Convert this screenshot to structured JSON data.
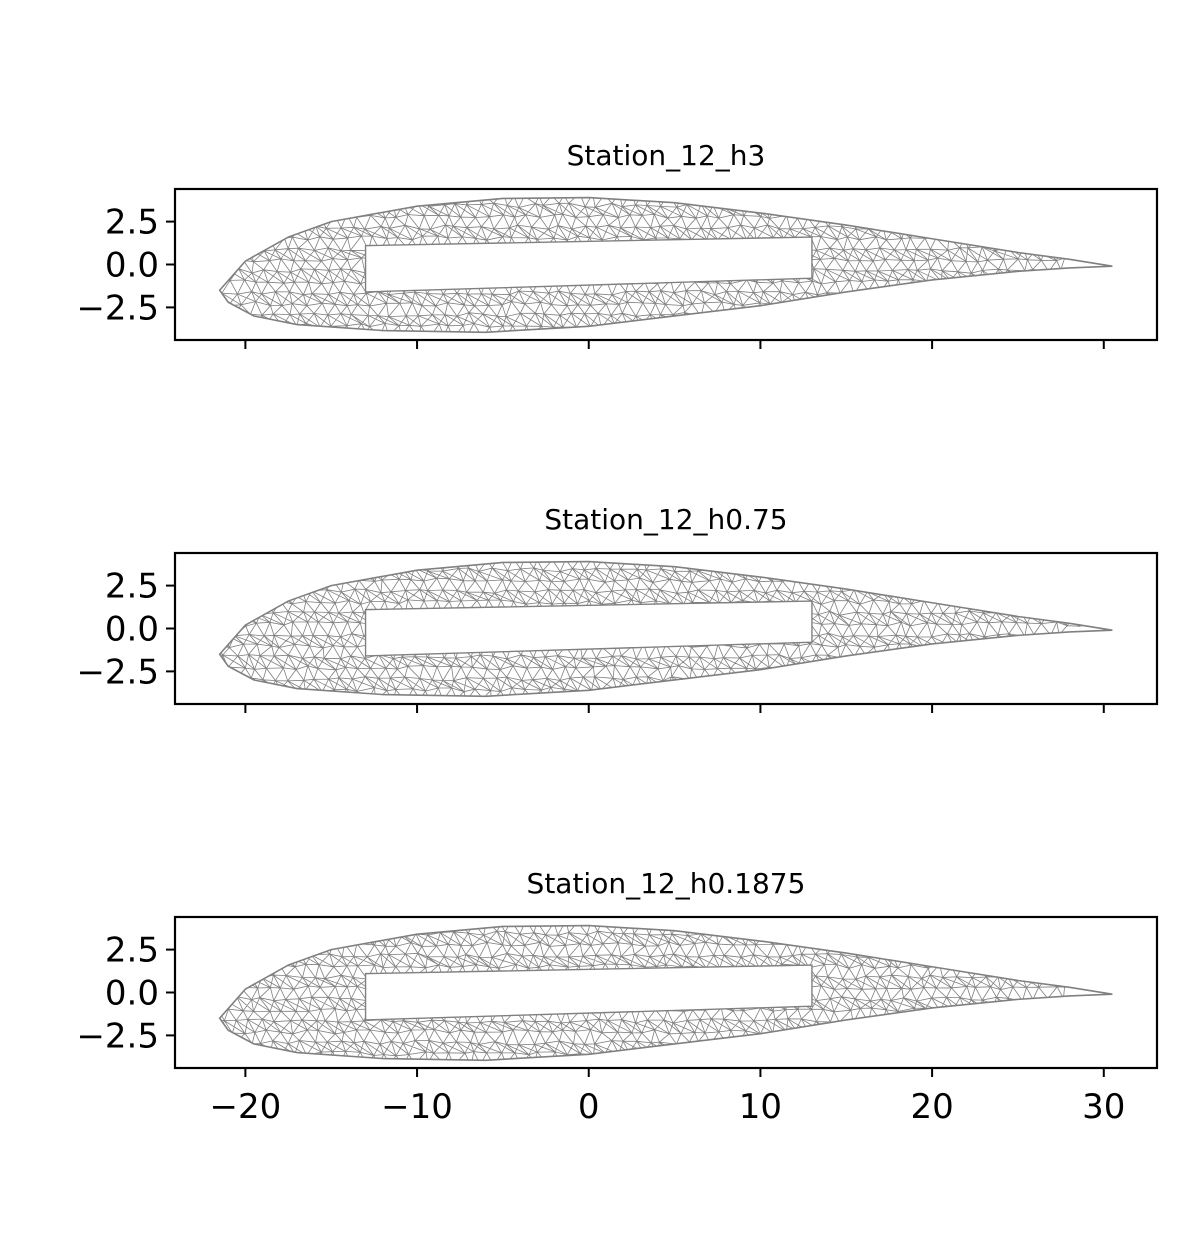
{
  "chart_data": [
    {
      "type": "mesh",
      "title": "Station_12_h3",
      "xlim": [
        -24.1,
        33.1
      ],
      "ylim": [
        -4.4,
        4.4
      ],
      "xticks": [
        -20,
        -10,
        0,
        10,
        20,
        30
      ],
      "yticks": [
        2.5,
        0.0,
        -2.5
      ],
      "ytick_labels": [
        "2.5",
        "0.0",
        "−2.5"
      ],
      "xtick_labels_shown": false,
      "mesh_color": "#808080",
      "airfoil": {
        "upper": [
          [
            -21.5,
            -1.5
          ],
          [
            -20,
            0.2
          ],
          [
            -17.5,
            1.6
          ],
          [
            -15,
            2.5
          ],
          [
            -10,
            3.4
          ],
          [
            -5,
            3.85
          ],
          [
            0,
            3.9
          ],
          [
            5,
            3.6
          ],
          [
            10,
            3.0
          ],
          [
            15,
            2.3
          ],
          [
            20,
            1.5
          ],
          [
            25,
            0.7
          ],
          [
            28,
            0.3
          ],
          [
            30.5,
            -0.1
          ]
        ],
        "lower": [
          [
            -21.5,
            -1.5
          ],
          [
            -21,
            -2.2
          ],
          [
            -19.5,
            -3.0
          ],
          [
            -17,
            -3.5
          ],
          [
            -12,
            -3.85
          ],
          [
            -6,
            -3.95
          ],
          [
            0,
            -3.6
          ],
          [
            5,
            -3.0
          ],
          [
            10,
            -2.4
          ],
          [
            15,
            -1.6
          ],
          [
            20,
            -0.9
          ],
          [
            25,
            -0.4
          ],
          [
            28,
            -0.2
          ],
          [
            30.5,
            -0.1
          ]
        ]
      },
      "cutout": [
        [
          -13,
          1.1
        ],
        [
          13,
          1.6
        ],
        [
          13,
          -0.8
        ],
        [
          -13,
          -1.6
        ]
      ]
    },
    {
      "type": "mesh",
      "title": "Station_12_h0.75",
      "xlim": [
        -24.1,
        33.1
      ],
      "ylim": [
        -4.4,
        4.4
      ],
      "xticks": [
        -20,
        -10,
        0,
        10,
        20,
        30
      ],
      "yticks": [
        2.5,
        0.0,
        -2.5
      ],
      "ytick_labels": [
        "2.5",
        "0.0",
        "−2.5"
      ],
      "xtick_labels_shown": false,
      "mesh_color": "#808080",
      "airfoil": {
        "upper": [
          [
            -21.5,
            -1.5
          ],
          [
            -20,
            0.2
          ],
          [
            -17.5,
            1.6
          ],
          [
            -15,
            2.5
          ],
          [
            -10,
            3.4
          ],
          [
            -5,
            3.85
          ],
          [
            0,
            3.9
          ],
          [
            5,
            3.6
          ],
          [
            10,
            3.0
          ],
          [
            15,
            2.3
          ],
          [
            20,
            1.5
          ],
          [
            25,
            0.7
          ],
          [
            28,
            0.3
          ],
          [
            30.5,
            -0.1
          ]
        ],
        "lower": [
          [
            -21.5,
            -1.5
          ],
          [
            -21,
            -2.2
          ],
          [
            -19.5,
            -3.0
          ],
          [
            -17,
            -3.5
          ],
          [
            -12,
            -3.85
          ],
          [
            -6,
            -3.95
          ],
          [
            0,
            -3.6
          ],
          [
            5,
            -3.0
          ],
          [
            10,
            -2.4
          ],
          [
            15,
            -1.6
          ],
          [
            20,
            -0.9
          ],
          [
            25,
            -0.4
          ],
          [
            28,
            -0.2
          ],
          [
            30.5,
            -0.1
          ]
        ]
      },
      "cutout": [
        [
          -13,
          1.1
        ],
        [
          13,
          1.6
        ],
        [
          13,
          -0.8
        ],
        [
          -13,
          -1.6
        ]
      ]
    },
    {
      "type": "mesh",
      "title": "Station_12_h0.1875",
      "xlim": [
        -24.1,
        33.1
      ],
      "ylim": [
        -4.4,
        4.4
      ],
      "xticks": [
        -20,
        -10,
        0,
        10,
        20,
        30
      ],
      "yticks": [
        2.5,
        0.0,
        -2.5
      ],
      "ytick_labels": [
        "2.5",
        "0.0",
        "−2.5"
      ],
      "xtick_labels": [
        "−20",
        "−10",
        "0",
        "10",
        "20",
        "30"
      ],
      "xtick_labels_shown": true,
      "mesh_color": "#808080",
      "airfoil": {
        "upper": [
          [
            -21.5,
            -1.5
          ],
          [
            -20,
            0.2
          ],
          [
            -17.5,
            1.6
          ],
          [
            -15,
            2.5
          ],
          [
            -10,
            3.4
          ],
          [
            -5,
            3.85
          ],
          [
            0,
            3.9
          ],
          [
            5,
            3.6
          ],
          [
            10,
            3.0
          ],
          [
            15,
            2.3
          ],
          [
            20,
            1.5
          ],
          [
            25,
            0.7
          ],
          [
            28,
            0.3
          ],
          [
            30.5,
            -0.1
          ]
        ],
        "lower": [
          [
            -21.5,
            -1.5
          ],
          [
            -21,
            -2.2
          ],
          [
            -19.5,
            -3.0
          ],
          [
            -17,
            -3.5
          ],
          [
            -12,
            -3.85
          ],
          [
            -6,
            -3.95
          ],
          [
            0,
            -3.6
          ],
          [
            5,
            -3.0
          ],
          [
            10,
            -2.4
          ],
          [
            15,
            -1.6
          ],
          [
            20,
            -0.9
          ],
          [
            25,
            -0.4
          ],
          [
            28,
            -0.2
          ],
          [
            30.5,
            -0.1
          ]
        ]
      },
      "cutout": [
        [
          -13,
          1.1
        ],
        [
          13,
          1.6
        ],
        [
          13,
          -0.8
        ],
        [
          -13,
          -1.6
        ]
      ]
    }
  ]
}
